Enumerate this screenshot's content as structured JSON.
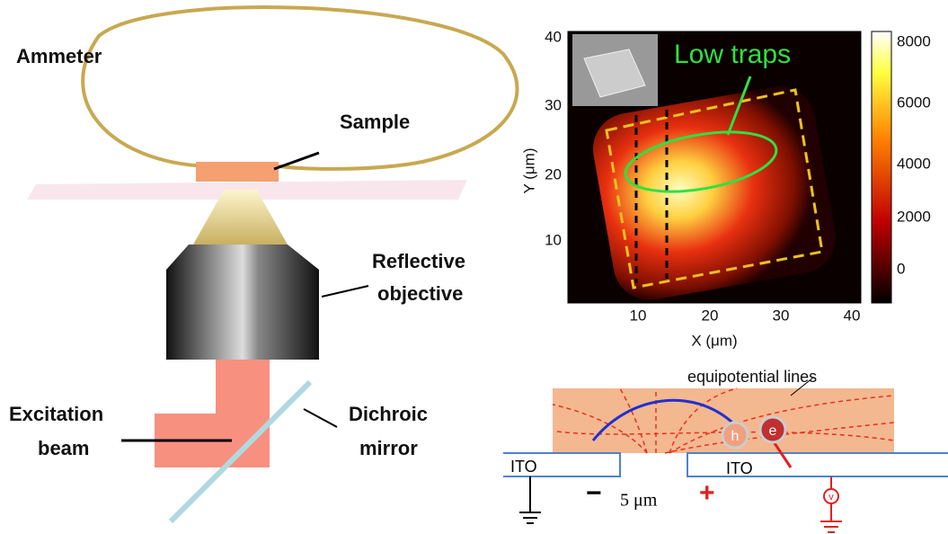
{
  "setup": {
    "ammeter": "Ammeter",
    "sample": "Sample",
    "objective_line1": "Reflective",
    "objective_line2": "objective",
    "beam_line1": "Excitation",
    "beam_line2": "beam",
    "mirror_line1": "Dichroic",
    "mirror_line2": "mirror"
  },
  "map": {
    "x_label": "X (μm)",
    "y_label": "Y (μm)",
    "xticks": [
      "10",
      "20",
      "30",
      "40"
    ],
    "yticks": [
      "10",
      "20",
      "30",
      "40"
    ],
    "colorbar_ticks": [
      "0",
      "2000",
      "4000",
      "6000",
      "8000"
    ],
    "annotation": "Low traps"
  },
  "device": {
    "equipotential": "equipotential  lines",
    "electrode_left": "ITO",
    "electrode_right": "ITO",
    "gap": "5 μm",
    "minus": "−",
    "plus": "+",
    "hole": "h",
    "electron": "e",
    "voltmeter": "v"
  }
}
